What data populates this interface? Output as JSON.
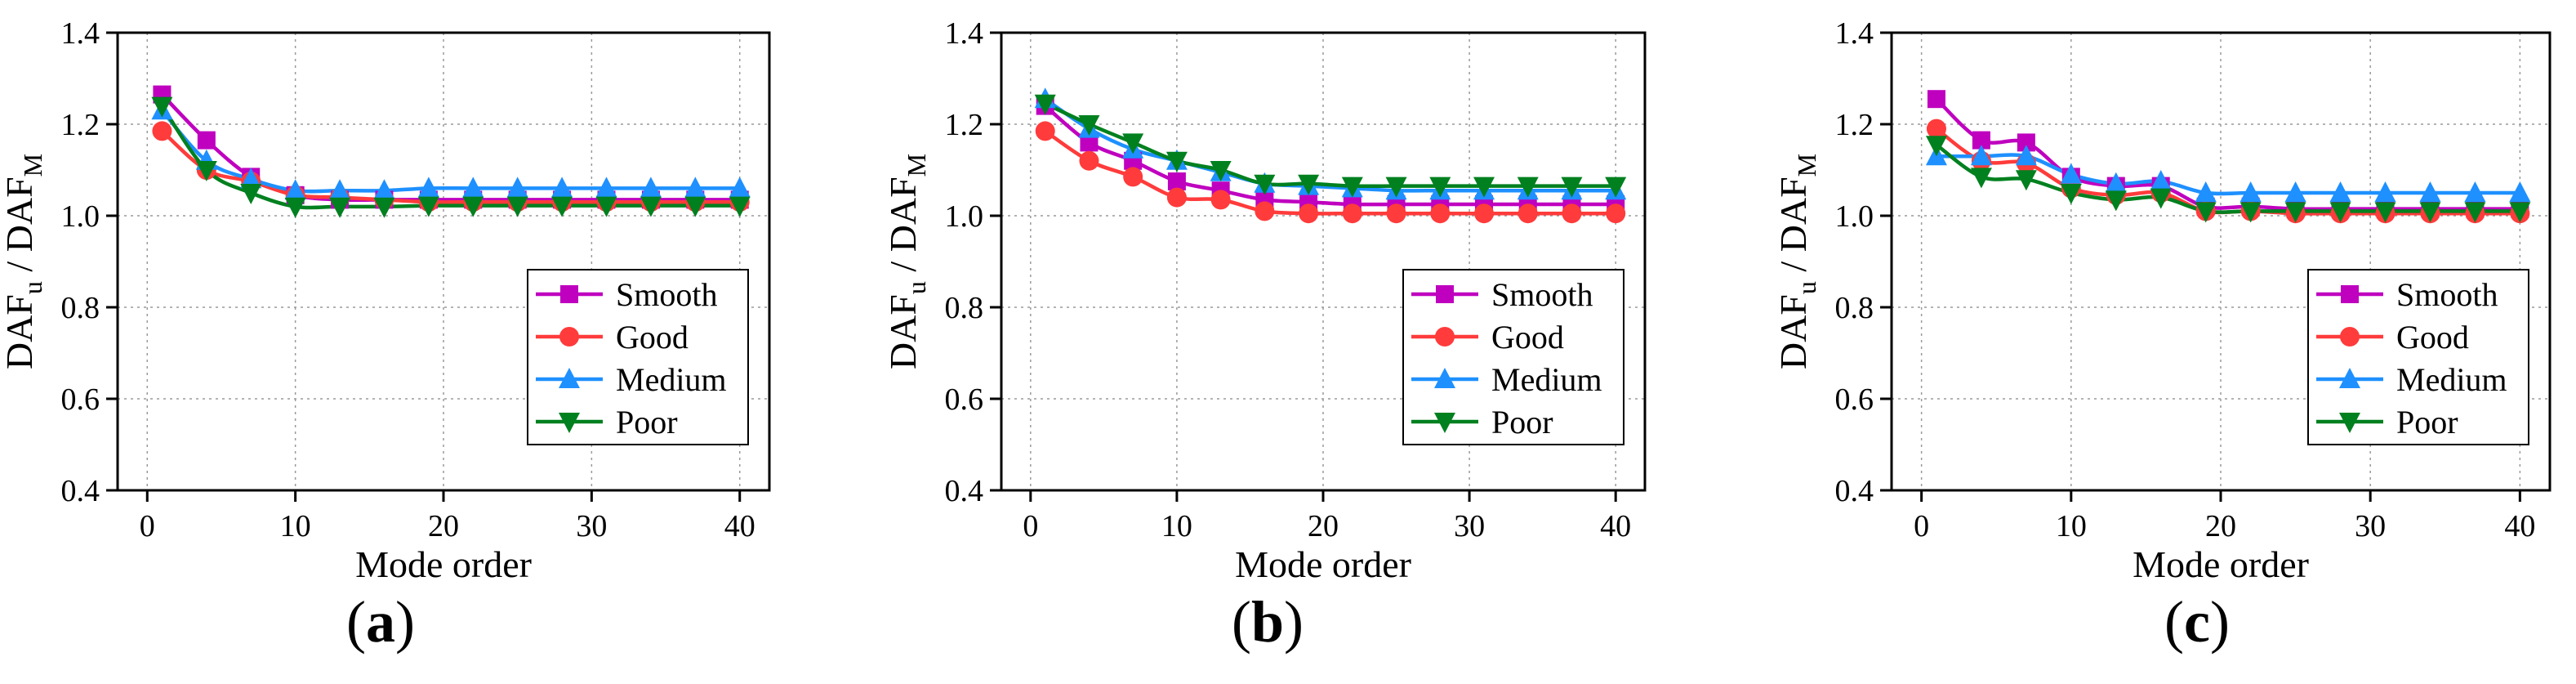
{
  "figure": {
    "panel_labels": [
      "(a)",
      "(b)",
      "(c)"
    ]
  },
  "chart_data": [
    {
      "type": "line",
      "panel": "(a)",
      "title": "",
      "xlabel": "Mode order",
      "ylabel_main": "DAF",
      "ylabel_sub1": "u",
      "ylabel_mid": " / DAF",
      "ylabel_sub2": "M",
      "xlim": [
        -2,
        42
      ],
      "ylim": [
        0.4,
        1.4
      ],
      "xticks": [
        0,
        10,
        20,
        30,
        40
      ],
      "yticks": [
        0.4,
        0.6,
        0.8,
        1.0,
        1.2,
        1.4
      ],
      "ytick_labels": [
        "0.4",
        "0.6",
        "0.8",
        "1.0",
        "1.2",
        "1.4"
      ],
      "grid": true,
      "legend_position": "lower-right",
      "x": [
        1,
        4,
        7,
        10,
        13,
        16,
        19,
        22,
        25,
        28,
        31,
        34,
        37,
        40
      ],
      "series": [
        {
          "name": "Smooth",
          "color": "#bf00bf",
          "marker": "square",
          "values": [
            1.265,
            1.165,
            1.085,
            1.045,
            1.035,
            1.035,
            1.035,
            1.035,
            1.035,
            1.035,
            1.035,
            1.035,
            1.035,
            1.035
          ]
        },
        {
          "name": "Good",
          "color": "#ff3b3b",
          "marker": "circle",
          "values": [
            1.185,
            1.1,
            1.075,
            1.045,
            1.04,
            1.035,
            1.03,
            1.03,
            1.03,
            1.03,
            1.03,
            1.03,
            1.03,
            1.03
          ]
        },
        {
          "name": "Medium",
          "color": "#1e90ff",
          "marker": "triangle-up",
          "values": [
            1.23,
            1.12,
            1.08,
            1.055,
            1.055,
            1.055,
            1.06,
            1.06,
            1.06,
            1.06,
            1.06,
            1.06,
            1.06,
            1.06
          ]
        },
        {
          "name": "Poor",
          "color": "#00801f",
          "marker": "triangle-down",
          "values": [
            1.24,
            1.1,
            1.05,
            1.02,
            1.02,
            1.02,
            1.022,
            1.022,
            1.022,
            1.022,
            1.022,
            1.022,
            1.022,
            1.022
          ]
        }
      ]
    },
    {
      "type": "line",
      "panel": "(b)",
      "title": "",
      "xlabel": "Mode order",
      "ylabel_main": "DAF",
      "ylabel_sub1": "u",
      "ylabel_mid": " / DAF",
      "ylabel_sub2": "M",
      "xlim": [
        -2,
        42
      ],
      "ylim": [
        0.4,
        1.4
      ],
      "xticks": [
        0,
        10,
        20,
        30,
        40
      ],
      "yticks": [
        0.4,
        0.6,
        0.8,
        1.0,
        1.2,
        1.4
      ],
      "ytick_labels": [
        "0.4",
        "0.6",
        "0.8",
        "1.0",
        "1.2",
        "1.4"
      ],
      "grid": true,
      "legend_position": "lower-right",
      "x": [
        1,
        4,
        7,
        10,
        13,
        16,
        19,
        22,
        25,
        28,
        31,
        34,
        37,
        40
      ],
      "series": [
        {
          "name": "Smooth",
          "color": "#bf00bf",
          "marker": "square",
          "values": [
            1.24,
            1.16,
            1.12,
            1.075,
            1.055,
            1.035,
            1.03,
            1.025,
            1.025,
            1.025,
            1.025,
            1.025,
            1.025,
            1.025
          ]
        },
        {
          "name": "Good",
          "color": "#ff3b3b",
          "marker": "circle",
          "values": [
            1.185,
            1.12,
            1.085,
            1.04,
            1.035,
            1.01,
            1.005,
            1.005,
            1.005,
            1.005,
            1.005,
            1.005,
            1.005,
            1.005
          ]
        },
        {
          "name": "Medium",
          "color": "#1e90ff",
          "marker": "triangle-up",
          "values": [
            1.255,
            1.19,
            1.145,
            1.12,
            1.095,
            1.07,
            1.065,
            1.06,
            1.055,
            1.055,
            1.055,
            1.055,
            1.055,
            1.055
          ]
        },
        {
          "name": "Poor",
          "color": "#00801f",
          "marker": "triangle-down",
          "values": [
            1.245,
            1.2,
            1.16,
            1.12,
            1.1,
            1.07,
            1.07,
            1.065,
            1.065,
            1.065,
            1.065,
            1.065,
            1.065,
            1.065
          ]
        }
      ]
    },
    {
      "type": "line",
      "panel": "(c)",
      "title": "",
      "xlabel": "Mode order",
      "ylabel_main": "DAF",
      "ylabel_sub1": "u",
      "ylabel_mid": " / DAF",
      "ylabel_sub2": "M",
      "xlim": [
        -2,
        42
      ],
      "ylim": [
        0.4,
        1.4
      ],
      "xticks": [
        0,
        10,
        20,
        30,
        40
      ],
      "yticks": [
        0.4,
        0.6,
        0.8,
        1.0,
        1.2,
        1.4
      ],
      "ytick_labels": [
        "0.4",
        "0.6",
        "0.8",
        "1.0",
        "1.2",
        "1.4"
      ],
      "grid": true,
      "legend_position": "lower-right",
      "x": [
        1,
        4,
        7,
        10,
        13,
        16,
        19,
        22,
        25,
        28,
        31,
        34,
        37,
        40
      ],
      "series": [
        {
          "name": "Smooth",
          "color": "#bf00bf",
          "marker": "square",
          "values": [
            1.255,
            1.165,
            1.16,
            1.085,
            1.065,
            1.065,
            1.02,
            1.02,
            1.015,
            1.015,
            1.015,
            1.015,
            1.015,
            1.015
          ]
        },
        {
          "name": "Good",
          "color": "#ff3b3b",
          "marker": "circle",
          "values": [
            1.19,
            1.12,
            1.115,
            1.06,
            1.045,
            1.05,
            1.01,
            1.01,
            1.005,
            1.005,
            1.005,
            1.005,
            1.005,
            1.005
          ]
        },
        {
          "name": "Medium",
          "color": "#1e90ff",
          "marker": "triangle-up",
          "values": [
            1.13,
            1.13,
            1.13,
            1.09,
            1.07,
            1.075,
            1.05,
            1.05,
            1.05,
            1.05,
            1.05,
            1.05,
            1.05,
            1.05
          ]
        },
        {
          "name": "Poor",
          "color": "#00801f",
          "marker": "triangle-down",
          "values": [
            1.155,
            1.085,
            1.08,
            1.05,
            1.035,
            1.04,
            1.01,
            1.01,
            1.01,
            1.01,
            1.01,
            1.01,
            1.01,
            1.01
          ]
        }
      ]
    }
  ]
}
